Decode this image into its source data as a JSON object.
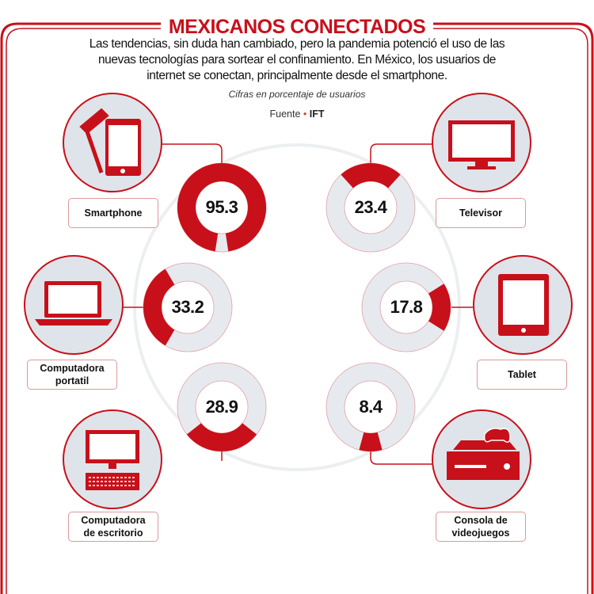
{
  "header": {
    "title": "MEXICANOS CONECTADOS",
    "intro": "Las tendencias, sin duda han cambiado, pero la pandemia potenció el uso de las nuevas tecnologías para sortear el confinamiento. En México, los usuarios de internet se conectan, principalmente desde el smartphone.",
    "subtitle": "Cifras en porcentaje de usuarios",
    "source_label": "Fuente",
    "source_separator": "•",
    "source": "IFT"
  },
  "colors": {
    "accent": "#c8101a",
    "track": "#e6eaef",
    "icon_bg": "#dfe4ea"
  },
  "chart_data": {
    "type": "donut",
    "unit": "% de usuarios",
    "categories": [
      "Smartphone",
      "Televisor",
      "Computadora portatil",
      "Tablet",
      "Computadora de escritorio",
      "Consola de videojuegos"
    ],
    "values": [
      95.3,
      23.4,
      33.2,
      17.8,
      28.9,
      8.4
    ],
    "value_labels": [
      "95.3",
      "23.4",
      "33.2",
      "17.8",
      "28.9",
      "8.4"
    ],
    "icons": [
      "smartphone-icon",
      "television-icon",
      "laptop-icon",
      "tablet-icon",
      "desktop-computer-icon",
      "game-console-icon"
    ]
  },
  "labels": {
    "smartphone": "Smartphone",
    "televisor": "Televisor",
    "portatil_1": "Computadora",
    "portatil_2": "portatil",
    "tablet": "Tablet",
    "escritorio_1": "Computadora",
    "escritorio_2": "de escritorio",
    "consola_1": "Consola de",
    "consola_2": "videojuegos"
  }
}
